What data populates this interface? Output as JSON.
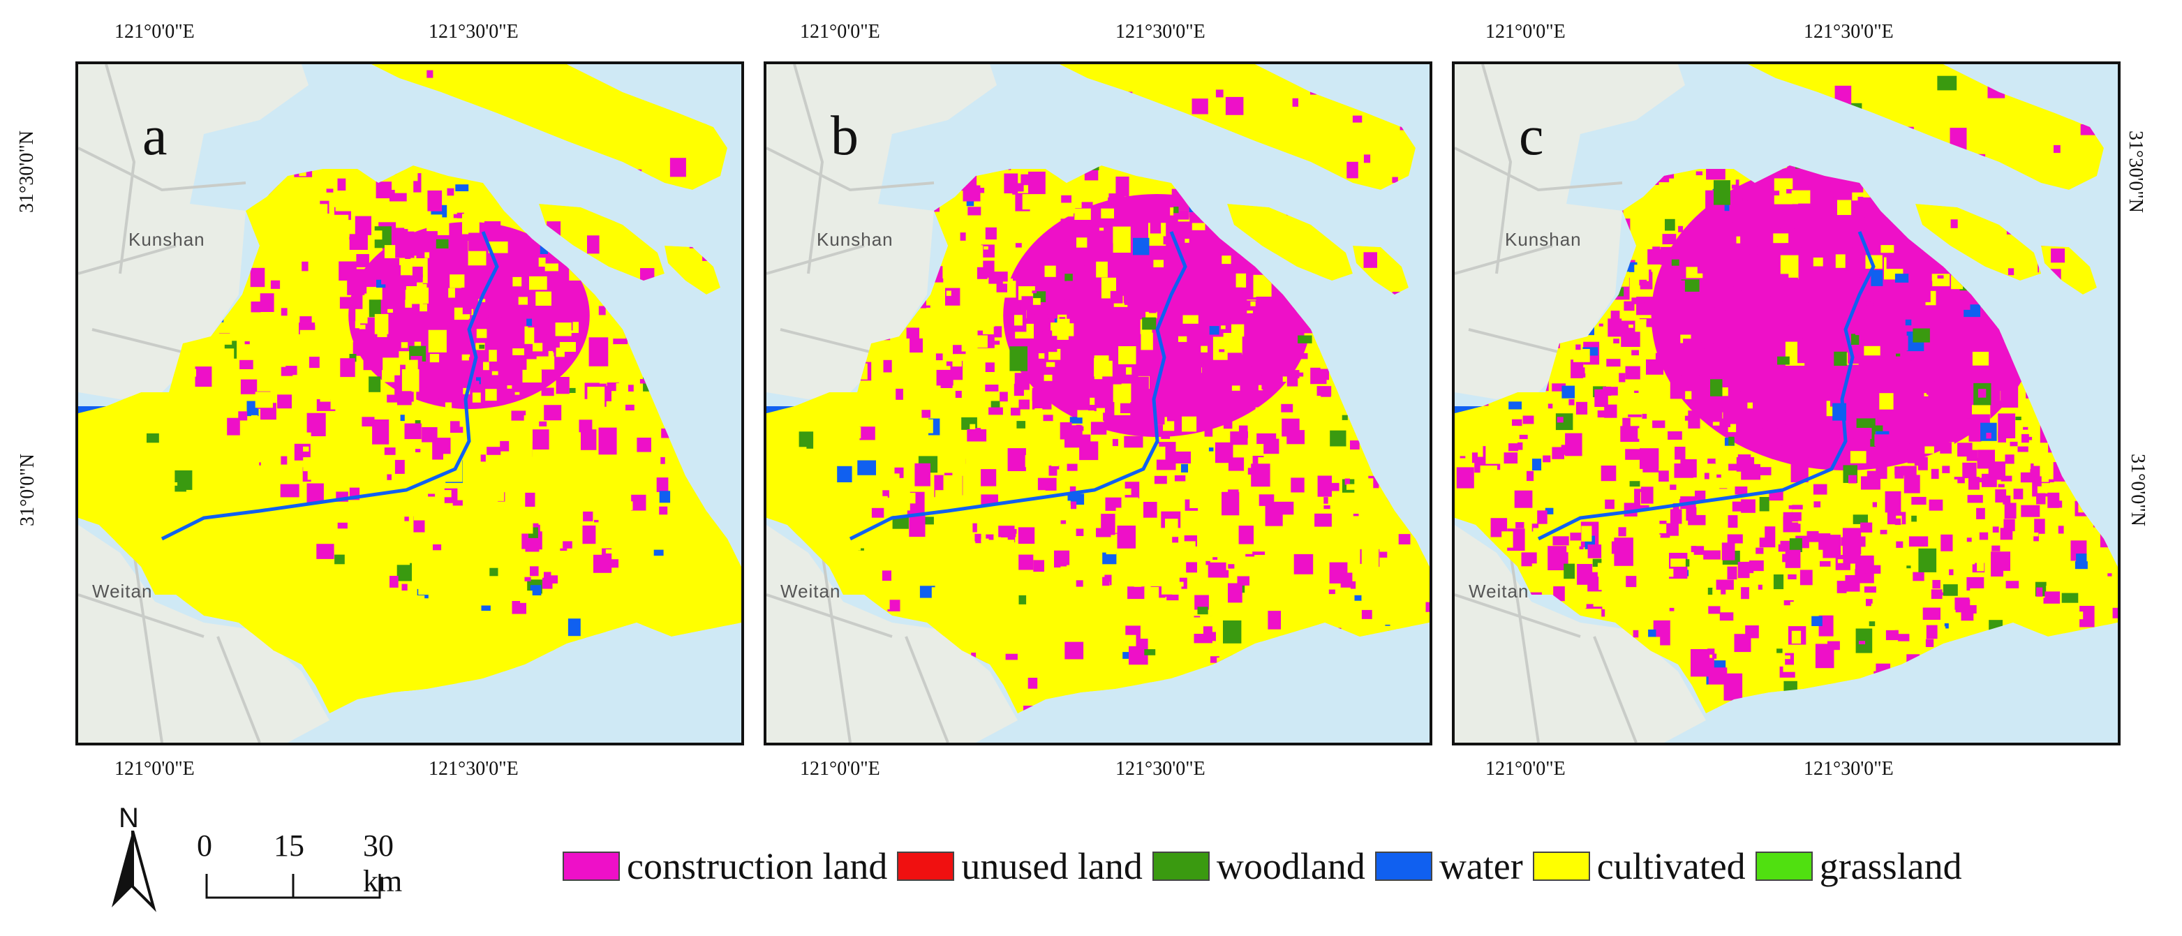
{
  "panels": [
    {
      "id": "a",
      "letter": "a",
      "construction_extent": "low"
    },
    {
      "id": "b",
      "letter": "b",
      "construction_extent": "medium"
    },
    {
      "id": "c",
      "letter": "c",
      "construction_extent": "high"
    }
  ],
  "axis_labels": {
    "lon_left": "121°0'0\"E",
    "lon_right": "121°30'0\"E",
    "lat_top": "31°30'0\"N",
    "lat_bottom": "31°0'0\"N"
  },
  "place_names": {
    "kunshan": "Kunshan",
    "weitang": "Weitan"
  },
  "scale_bar": {
    "ticks": [
      "0",
      "15",
      "30 km"
    ]
  },
  "north_arrow": {
    "label": "N"
  },
  "legend": [
    {
      "label": "construction land",
      "color": "#ee10c8"
    },
    {
      "label": "unused land",
      "color": "#f01010"
    },
    {
      "label": "woodland",
      "color": "#3a9a10"
    },
    {
      "label": "water",
      "color": "#1060f0"
    },
    {
      "label": "cultivated",
      "color": "#ffff00"
    },
    {
      "label": "grassland",
      "color": "#50e010"
    }
  ],
  "colors": {
    "sea": "#cfe9f5",
    "land_background": "#e9ede6",
    "road": "#c9ccc8"
  }
}
